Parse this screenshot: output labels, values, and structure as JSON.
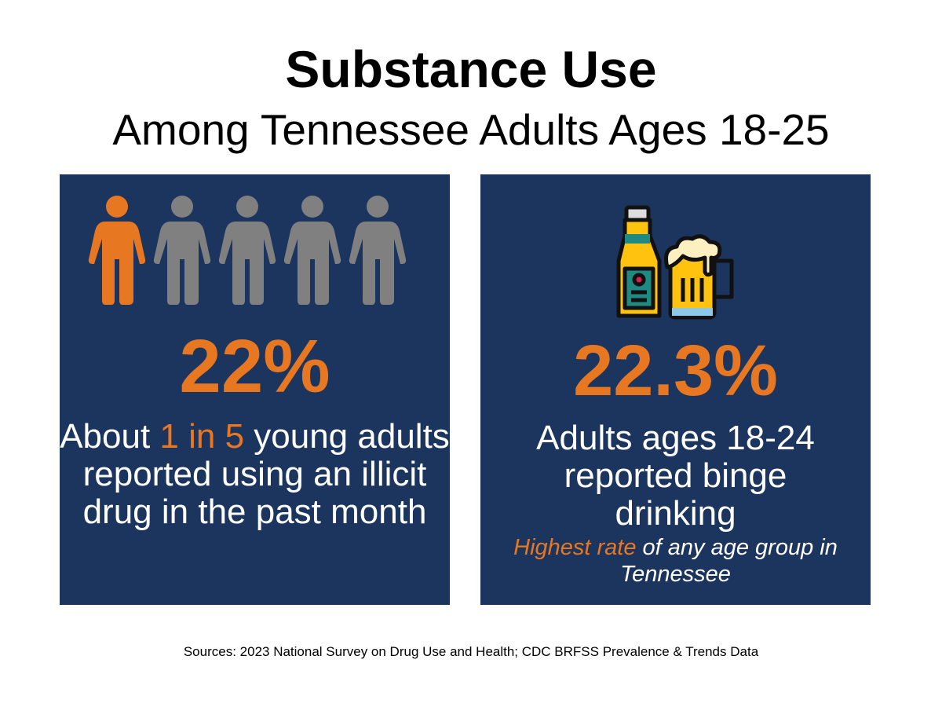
{
  "header": {
    "title": "Substance Use",
    "subtitle": "Among Tennessee Adults Ages 18-25"
  },
  "left_panel": {
    "icon": "person-icons-1-of-5-highlighted",
    "highlighted_count": 1,
    "total_count": 5,
    "stat": "22%",
    "text_before": "About ",
    "text_highlight": "1 in 5",
    "text_after": " young adults reported using an illicit drug in the past month"
  },
  "right_panel": {
    "icon": "beer-bottle-and-mug-icon",
    "stat": "22.3%",
    "text": "Adults ages 18-24 reported binge drinking",
    "note_highlight": "Highest rate",
    "note_rest": " of any age group in Tennessee"
  },
  "footer": {
    "sources": "Sources:  2023 National Survey on Drug Use and Health; CDC BRFSS Prevalence & Trends Data"
  },
  "colors": {
    "navy": "#1c355e",
    "orange": "#e87722",
    "gray": "#808080"
  }
}
